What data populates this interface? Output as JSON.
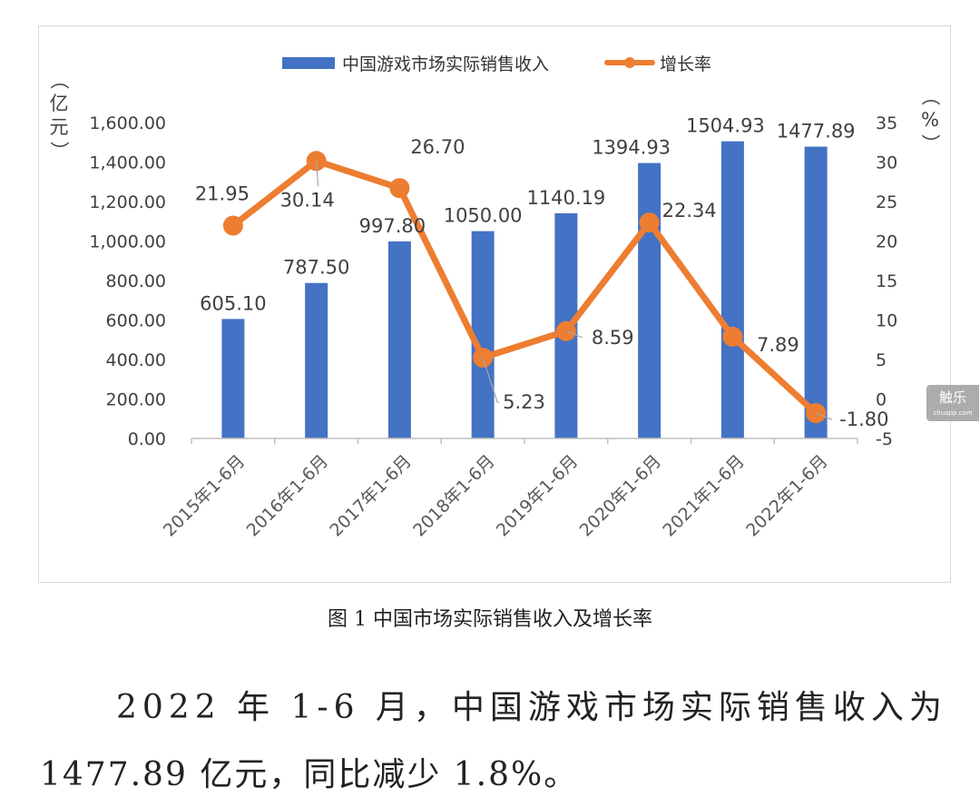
{
  "chart_data": {
    "type": "bar+line",
    "categories": [
      "2015年1-6月",
      "2016年1-6月",
      "2017年1-6月",
      "2018年1-6月",
      "2019年1-6月",
      "2020年1-6月",
      "2021年1-6月",
      "2022年1-6月"
    ],
    "series": [
      {
        "name": "中国游戏市场实际销售收入",
        "type": "bar",
        "axis": "left",
        "color": "#4472c4",
        "values": [
          605.1,
          787.5,
          997.8,
          1050.0,
          1140.19,
          1394.93,
          1504.93,
          1477.89
        ],
        "labels": [
          "605.10",
          "787.50",
          "997.80",
          "1050.00",
          "1140.19",
          "1394.93",
          "1504.93",
          "1477.89"
        ]
      },
      {
        "name": "增长率",
        "type": "line",
        "axis": "right",
        "color": "#ed7d31",
        "values": [
          21.95,
          30.14,
          26.7,
          5.23,
          8.59,
          22.34,
          7.89,
          -1.8
        ],
        "labels": [
          "21.95",
          "30.14",
          "26.70",
          "5.23",
          "8.59",
          "22.34",
          "7.89",
          "-1.80"
        ]
      }
    ],
    "y_left": {
      "unit": "（亿元）",
      "range": [
        0,
        1600
      ],
      "ticks": [
        "0.00",
        "200.00",
        "400.00",
        "600.00",
        "800.00",
        "1,000.00",
        "1,200.00",
        "1,400.00",
        "1,600.00"
      ]
    },
    "y_right": {
      "unit": "（%）",
      "range": [
        -5,
        35
      ],
      "ticks": [
        "-5",
        "0",
        "5",
        "10",
        "15",
        "20",
        "25",
        "30",
        "35"
      ]
    },
    "legend_position": "top",
    "grid": false
  },
  "caption": "图 1 中国市场实际销售收入及增长率",
  "paragraph": {
    "line1": "2022 年 1-6 月，中国游戏市场实际销售收入为",
    "line2": "1477.89 亿元，同比减少 1.8%。"
  },
  "watermark": {
    "main": "触乐",
    "sub": "chuapp.com"
  }
}
